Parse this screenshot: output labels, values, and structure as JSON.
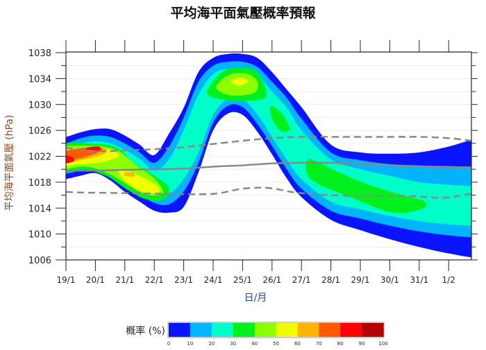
{
  "chart_data": {
    "type": "contour",
    "title": "平均海平面氣壓概率預報",
    "xlabel": "日/月",
    "ylabel": "平均海平面氣壓 (hPa)",
    "ylim": [
      1006,
      1038
    ],
    "y_ticks": [
      1006,
      1010,
      1014,
      1018,
      1022,
      1026,
      1030,
      1034,
      1038
    ],
    "x_ticks": [
      "19/1",
      "20/1",
      "21/1",
      "22/1",
      "23/1",
      "24/1",
      "25/1",
      "26/1",
      "27/1",
      "28/1",
      "29/1",
      "30/1",
      "31/1",
      "1/2"
    ],
    "x_unit_note": "x values are days after 19/1",
    "grid": true,
    "colorbar": {
      "label": "概率 (%)",
      "levels": [
        0,
        10,
        20,
        30,
        40,
        50,
        60,
        70,
        80,
        90,
        100
      ],
      "colors": [
        "#0a14ff",
        "#00b4ff",
        "#00ffc8",
        "#00f01e",
        "#8cff00",
        "#f0ff00",
        "#ffb400",
        "#ff5a00",
        "#ff0000",
        "#b40000"
      ]
    },
    "bands": [
      {
        "level": 0,
        "x": [
          0,
          0.5,
          1,
          1.5,
          2,
          2.5,
          3,
          3.5,
          4,
          4.5,
          5,
          5.5,
          6,
          6.5,
          7,
          7.5,
          8,
          9,
          10,
          11,
          12,
          13,
          13.77
        ],
        "upper": [
          1025.0,
          1025.7,
          1026.2,
          1026.2,
          1025.2,
          1023.8,
          1022.2,
          1025.5,
          1029.5,
          1035.0,
          1037.2,
          1037.8,
          1037.8,
          1037.2,
          1035.0,
          1032.3,
          1029.6,
          1023.8,
          1022.6,
          1022.4,
          1022.6,
          1023.5,
          1024.5
        ],
        "lower": [
          1018.5,
          1019.0,
          1019.4,
          1018.3,
          1016.5,
          1015.0,
          1013.6,
          1013.3,
          1014.2,
          1019.5,
          1026.0,
          1028.6,
          1028.4,
          1025.8,
          1022.3,
          1018.6,
          1015.7,
          1012.2,
          1010.6,
          1009.2,
          1008.0,
          1007.0,
          1006.4
        ]
      },
      {
        "level": 10,
        "x": [
          0,
          0.5,
          1,
          1.5,
          2,
          2.5,
          3,
          3.5,
          4,
          4.5,
          5,
          5.5,
          6,
          6.5,
          7,
          7.5,
          8,
          9,
          10,
          11,
          12,
          13,
          13.77
        ],
        "upper": [
          1024.0,
          1024.8,
          1025.2,
          1025.0,
          1024.0,
          1022.6,
          1021.0,
          1023.5,
          1028.0,
          1033.5,
          1036.0,
          1036.6,
          1036.6,
          1035.8,
          1033.5,
          1031.0,
          1027.8,
          1022.6,
          1021.4,
          1020.8,
          1020.6,
          1020.5,
          1020.4
        ],
        "lower": [
          1019.3,
          1019.8,
          1020.2,
          1019.4,
          1017.6,
          1016.2,
          1014.8,
          1014.6,
          1016.6,
          1021.0,
          1027.2,
          1029.8,
          1029.6,
          1027.0,
          1023.6,
          1020.0,
          1017.0,
          1013.6,
          1012.4,
          1011.3,
          1010.4,
          1009.8,
          1009.5
        ]
      },
      {
        "level": 20,
        "x": [
          0,
          0.5,
          1,
          1.5,
          2,
          2.5,
          3,
          3.5,
          4,
          4.5,
          5,
          5.5,
          6,
          6.5,
          7,
          7.5,
          8,
          9,
          10,
          11,
          12,
          13,
          13.77
        ],
        "upper": [
          1023.2,
          1024.0,
          1024.3,
          1024.0,
          1023.0,
          1021.6,
          1019.8,
          1021.5,
          1026.0,
          1031.5,
          1034.7,
          1035.5,
          1035.5,
          1034.5,
          1032.0,
          1029.5,
          1026.0,
          1021.5,
          1020.0,
          1019.0,
          1018.0,
          1017.6,
          1017.4
        ],
        "lower": [
          1020.0,
          1020.6,
          1021.0,
          1020.4,
          1018.6,
          1017.2,
          1016.0,
          1016.2,
          1018.5,
          1022.6,
          1028.4,
          1030.9,
          1030.8,
          1028.5,
          1025.0,
          1021.5,
          1018.5,
          1015.0,
          1013.8,
          1012.8,
          1012.0,
          1011.5,
          1011.3
        ]
      }
    ],
    "regions": [
      {
        "level": 30,
        "points": [
          [
            -0.3,
            1023.6
          ],
          [
            0.8,
            1024.0
          ],
          [
            1.7,
            1023.4
          ],
          [
            2.3,
            1021.0
          ],
          [
            3.0,
            1019.0
          ],
          [
            3.5,
            1017.2
          ],
          [
            3.3,
            1015.3
          ],
          [
            2.7,
            1015.4
          ],
          [
            2.1,
            1016.8
          ],
          [
            1.4,
            1018.9
          ],
          [
            0.6,
            1020.0
          ],
          [
            -0.3,
            1019.6
          ]
        ]
      },
      {
        "level": 30,
        "points": [
          [
            4.8,
            1031.8
          ],
          [
            5.3,
            1035.0
          ],
          [
            5.9,
            1035.7
          ],
          [
            6.5,
            1035.0
          ],
          [
            6.8,
            1031.3
          ],
          [
            6.2,
            1030.6
          ],
          [
            5.4,
            1030.7
          ]
        ]
      },
      {
        "level": 30,
        "points": [
          [
            6.95,
            1029.8
          ],
          [
            7.35,
            1028.5
          ],
          [
            7.6,
            1026.2
          ],
          [
            7.3,
            1025.9
          ],
          [
            7.0,
            1027.8
          ]
        ]
      },
      {
        "level": 30,
        "points": [
          [
            8.2,
            1021.5
          ],
          [
            8.6,
            1021.0
          ],
          [
            9.2,
            1019.7
          ],
          [
            10.3,
            1017.6
          ],
          [
            11.6,
            1015.8
          ],
          [
            12.2,
            1015.0
          ],
          [
            12.1,
            1013.9
          ],
          [
            11.1,
            1013.3
          ],
          [
            9.6,
            1015.8
          ],
          [
            8.3,
            1018.5
          ]
        ]
      },
      {
        "level": 40,
        "points": [
          [
            -0.3,
            1023.2
          ],
          [
            0.8,
            1023.6
          ],
          [
            1.7,
            1023.0
          ],
          [
            2.4,
            1020.6
          ],
          [
            3.0,
            1018.6
          ],
          [
            3.3,
            1016.4
          ],
          [
            2.8,
            1016.0
          ],
          [
            2.2,
            1017.3
          ],
          [
            1.5,
            1019.2
          ],
          [
            0.7,
            1020.4
          ],
          [
            -0.3,
            1020.1
          ]
        ]
      },
      {
        "level": 40,
        "points": [
          [
            5.1,
            1032.6
          ],
          [
            5.5,
            1034.5
          ],
          [
            6.1,
            1034.8
          ],
          [
            6.5,
            1033.6
          ],
          [
            6.4,
            1031.8
          ],
          [
            5.6,
            1031.4
          ]
        ]
      },
      {
        "level": 50,
        "points": [
          [
            -0.3,
            1022.8
          ],
          [
            0.8,
            1023.3
          ],
          [
            1.5,
            1023.0
          ],
          [
            1.8,
            1022.0
          ],
          [
            1.2,
            1021.1
          ],
          [
            0.5,
            1020.8
          ],
          [
            -0.3,
            1020.6
          ]
        ]
      },
      {
        "level": 50,
        "points": [
          [
            1.8,
            1019.8
          ],
          [
            2.4,
            1019.2
          ],
          [
            3.1,
            1017.4
          ],
          [
            3.1,
            1016.3
          ],
          [
            2.5,
            1016.6
          ],
          [
            2.0,
            1018.2
          ]
        ]
      },
      {
        "level": 50,
        "points": [
          [
            5.6,
            1033.5
          ],
          [
            5.9,
            1034.1
          ],
          [
            6.2,
            1033.6
          ],
          [
            5.9,
            1032.9
          ]
        ]
      },
      {
        "level": 60,
        "points": [
          [
            -0.3,
            1022.6
          ],
          [
            0.7,
            1023.4
          ],
          [
            1.3,
            1023.3
          ],
          [
            1.3,
            1022.4
          ],
          [
            0.5,
            1021.4
          ],
          [
            -0.3,
            1020.9
          ]
        ]
      },
      {
        "level": 60,
        "points": [
          [
            2.0,
            1019.5
          ],
          [
            2.3,
            1019.4
          ],
          [
            2.3,
            1018.9
          ],
          [
            2.0,
            1019.0
          ]
        ]
      },
      {
        "level": 70,
        "points": [
          [
            -0.3,
            1022.4
          ],
          [
            0.6,
            1023.3
          ],
          [
            1.2,
            1023.3
          ],
          [
            1.1,
            1022.6
          ],
          [
            0.4,
            1021.6
          ],
          [
            -0.3,
            1021.0
          ]
        ]
      },
      {
        "level": 80,
        "points": [
          [
            -0.3,
            1022.1
          ],
          [
            0.15,
            1022.0
          ],
          [
            0.25,
            1021.2
          ],
          [
            -0.3,
            1020.9
          ]
        ]
      },
      {
        "level": 80,
        "points": [
          [
            0.7,
            1023.3
          ],
          [
            1.1,
            1023.5
          ],
          [
            1.15,
            1023.0
          ],
          [
            0.8,
            1022.9
          ]
        ]
      }
    ],
    "lines": [
      {
        "style": "solid",
        "color": "#888888",
        "x": [
          0,
          1,
          2,
          3,
          4,
          5,
          6,
          7,
          8,
          9,
          10,
          11,
          12,
          13,
          13.77
        ],
        "y": [
          1019.8,
          1019.8,
          1019.9,
          1020.0,
          1020.1,
          1020.4,
          1020.6,
          1020.9,
          1021.0,
          1021.0,
          1020.8,
          1020.6,
          1020.4,
          1020.3,
          1020.3
        ]
      },
      {
        "style": "dashed",
        "color": "#888888",
        "x": [
          0,
          1,
          2,
          3,
          4,
          5,
          6,
          7,
          8,
          9,
          10,
          11,
          12,
          13,
          13.77
        ],
        "y": [
          1023.3,
          1022.8,
          1022.9,
          1023.1,
          1023.4,
          1023.9,
          1024.4,
          1024.8,
          1025.0,
          1025.0,
          1025.0,
          1025.0,
          1025.0,
          1024.8,
          1024.4
        ]
      },
      {
        "style": "dashed",
        "color": "#888888",
        "x": [
          0,
          0.6,
          2.2,
          3.4,
          5.0,
          6.0,
          6.9,
          7.8,
          9,
          10,
          11,
          11.9,
          12.8,
          13.77
        ],
        "y": [
          1016.5,
          1016.4,
          1016.3,
          1016.2,
          1016.2,
          1017.0,
          1017.1,
          1016.4,
          1016.0,
          1015.9,
          1015.9,
          1015.8,
          1015.6,
          1016.2
        ]
      }
    ]
  }
}
